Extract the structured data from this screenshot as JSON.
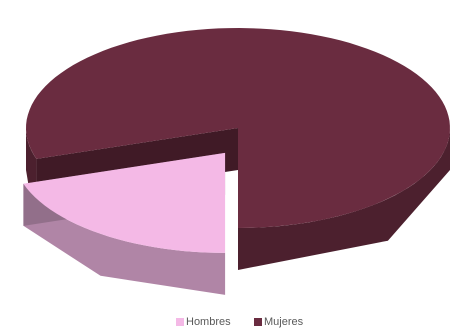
{
  "chart_data": {
    "type": "pie3d",
    "categories": [
      "Hombres",
      "Mujeres"
    ],
    "values": [
      20,
      80
    ],
    "colors": [
      "#f4b9e6",
      "#6a2c40"
    ],
    "legend": "bottom"
  }
}
